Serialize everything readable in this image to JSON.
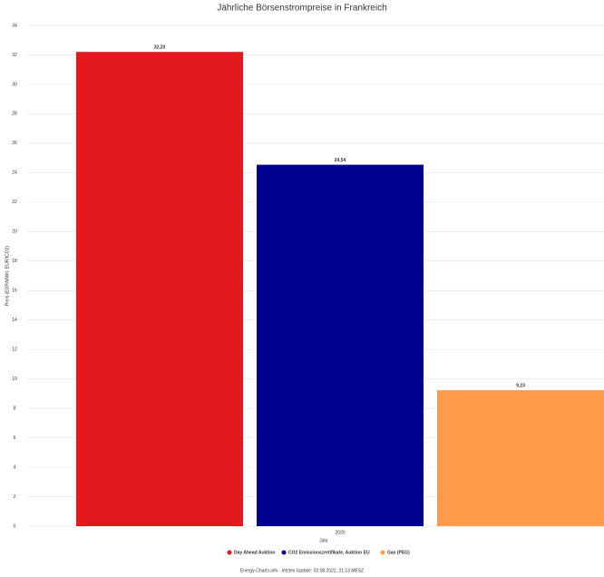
{
  "chart_data": {
    "type": "bar",
    "title": "Jährliche Börsenstrompreise in Frankreich",
    "y_label": "Preis (EUR/MWh; EUR/tCO2)",
    "x_label": "Jahr",
    "categories": [
      "2020"
    ],
    "series": [
      {
        "name": "Day Ahead Auktion",
        "color": "#e3191d",
        "values": [
          32.2
        ],
        "value_labels": [
          "32,20"
        ]
      },
      {
        "name": "CO2 Emissionszertifikate, Auktion EU",
        "color": "#000090",
        "values": [
          24.54
        ],
        "value_labels": [
          "24,54"
        ]
      },
      {
        "name": "Gas (PEG)",
        "color": "#fe9a4a",
        "values": [
          9.23
        ],
        "value_labels": [
          "9,23"
        ]
      }
    ],
    "ylim": [
      0,
      34
    ],
    "yticks": [
      0,
      2,
      4,
      6,
      8,
      10,
      12,
      14,
      16,
      18,
      20,
      22,
      24,
      26,
      28,
      30,
      32,
      34
    ],
    "grid": true,
    "legend": "bottom",
    "footer": "Energy-Charts.info - letztes Update: 02.08.2022, 21:13 MESZ"
  }
}
